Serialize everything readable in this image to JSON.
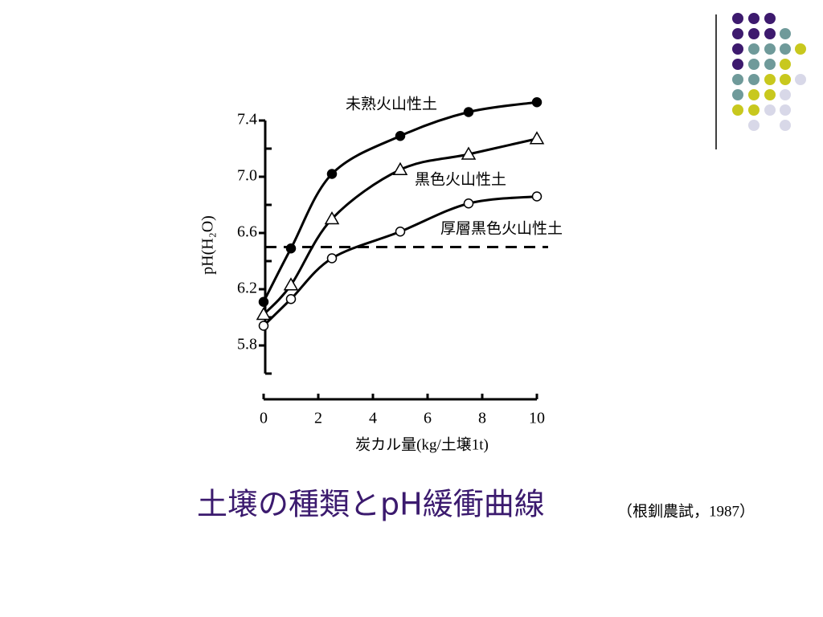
{
  "chart_data": {
    "type": "line",
    "x_label": "炭カル量(kg/土壌1t)",
    "y_label": "pH(H₂O)",
    "xlim": [
      0,
      10
    ],
    "xticks": [
      0,
      2,
      4,
      6,
      8,
      10
    ],
    "ylim": [
      5.6,
      7.4
    ],
    "yticks": [
      {
        "value": 7.4,
        "label": "7.4"
      },
      {
        "value": 7.0,
        "label": "7.0"
      },
      {
        "value": 6.6,
        "label": "6.6"
      },
      {
        "value": 6.2,
        "label": "6.2"
      },
      {
        "value": 5.8,
        "label": "5.8"
      }
    ],
    "yminor": [
      7.2,
      6.8,
      6.4,
      6.0,
      5.6
    ],
    "reference_y": 6.5,
    "series": [
      {
        "name": "未熟火山性土",
        "color": "#000000",
        "marker": "filled-circle",
        "x": [
          0,
          1,
          2.5,
          5,
          7.5,
          10
        ],
        "values": [
          6.11,
          6.49,
          7.02,
          7.29,
          7.46,
          7.53
        ]
      },
      {
        "name": "黒色火山性土",
        "color": "#000000",
        "marker": "triangle",
        "x": [
          0,
          1,
          2.5,
          5,
          7.5,
          10
        ],
        "values": [
          6.02,
          6.23,
          6.7,
          7.05,
          7.16,
          7.27
        ]
      },
      {
        "name": "厚層黒色火山性土",
        "color": "#000000",
        "marker": "open-circle",
        "x": [
          0,
          1,
          2.5,
          5,
          7.5,
          10
        ],
        "values": [
          5.94,
          6.13,
          6.42,
          6.61,
          6.81,
          6.86
        ]
      }
    ]
  },
  "slide": {
    "title": "土壌の種類とpH緩衝曲線",
    "source": "（根釧農試，1987）"
  }
}
